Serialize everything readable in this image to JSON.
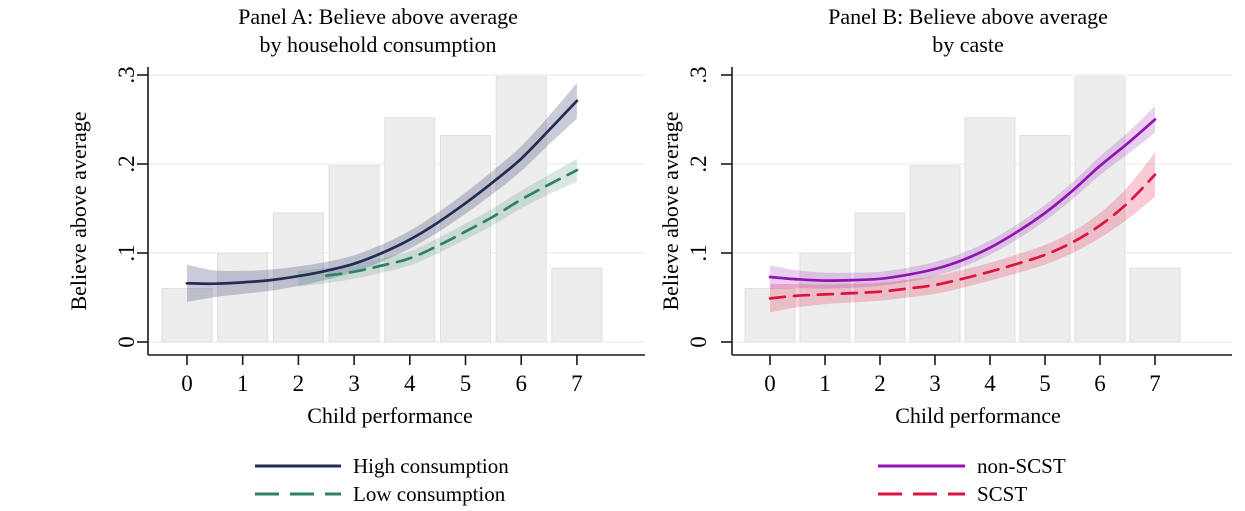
{
  "figure": {
    "background": "#ffffff",
    "text_color": "#000000",
    "grid_color": "#e9eff4",
    "bar_fill": "#ededed",
    "bar_stroke": "#dfdfdf",
    "axis_color": "#1a1a1a"
  },
  "chart_data": [
    {
      "panel": "A",
      "type": "line",
      "title_line1": "Panel A: Believe above average",
      "title_line2": "by household consumption",
      "ylabel": "Believe above average",
      "xlabel": "Child performance",
      "grid": true,
      "legend_position": "bottom",
      "xticks": {
        "values": [
          0,
          1,
          2,
          3,
          4,
          5,
          6,
          7
        ],
        "labels": [
          "0",
          "1",
          "2",
          "3",
          "4",
          "5",
          "6",
          "7"
        ]
      },
      "yticks": {
        "values": [
          0,
          0.1,
          0.2,
          0.3
        ],
        "labels": [
          "0",
          ".1",
          ".2",
          ".3"
        ]
      },
      "ylim": [
        0,
        0.3
      ],
      "histogram": {
        "categories": [
          0,
          1,
          2,
          3,
          4,
          5,
          6,
          7
        ],
        "values": [
          0.06,
          0.1,
          0.145,
          0.198,
          0.252,
          0.232,
          0.298,
          0.083
        ]
      },
      "series": [
        {
          "name": "High consumption",
          "style": "solid",
          "color": "#222c55",
          "band_color": "rgba(60,70,118,0.28)",
          "x": [
            0,
            0.5,
            1,
            1.5,
            2,
            2.5,
            3,
            3.5,
            4,
            4.5,
            5,
            5.5,
            6,
            6.5,
            7
          ],
          "y": [
            0.066,
            0.0655,
            0.067,
            0.0695,
            0.074,
            0.08,
            0.088,
            0.1,
            0.115,
            0.134,
            0.156,
            0.18,
            0.206,
            0.238,
            0.271
          ],
          "ci": [
            0.021,
            0.015,
            0.013,
            0.012,
            0.011,
            0.01,
            0.0095,
            0.0095,
            0.01,
            0.011,
            0.012,
            0.013,
            0.014,
            0.016,
            0.02
          ]
        },
        {
          "name": "Low consumption",
          "style": "dashed",
          "color": "#2f8068",
          "band_color": "rgba(64,140,116,0.20)",
          "line_start_x": 2.5,
          "x": [
            2.0,
            2.5,
            3,
            3.5,
            4,
            4.5,
            5,
            5.5,
            6,
            6.5,
            7
          ],
          "y": [
            0.071,
            0.0745,
            0.079,
            0.086,
            0.094,
            0.108,
            0.124,
            0.141,
            0.16,
            0.177,
            0.193
          ],
          "ci": [
            0.009,
            0.0085,
            0.008,
            0.008,
            0.008,
            0.0085,
            0.009,
            0.0095,
            0.01,
            0.011,
            0.013
          ]
        }
      ]
    },
    {
      "panel": "B",
      "type": "line",
      "title_line1": "Panel B: Believe above average",
      "title_line2": "by caste",
      "ylabel": "Believe above average",
      "xlabel": "Child performance",
      "grid": true,
      "legend_position": "bottom",
      "xticks": {
        "values": [
          0,
          1,
          2,
          3,
          4,
          5,
          6,
          7
        ],
        "labels": [
          "0",
          "1",
          "2",
          "3",
          "4",
          "5",
          "6",
          "7"
        ]
      },
      "yticks": {
        "values": [
          0,
          0.1,
          0.2,
          0.3
        ],
        "labels": [
          "0",
          ".1",
          ".2",
          ".3"
        ]
      },
      "ylim": [
        0,
        0.3
      ],
      "histogram": {
        "categories": [
          0,
          1,
          2,
          3,
          4,
          5,
          6,
          7
        ],
        "values": [
          0.06,
          0.1,
          0.145,
          0.198,
          0.252,
          0.232,
          0.298,
          0.083
        ]
      },
      "series": [
        {
          "name": "non-SCST",
          "style": "solid",
          "color": "#9213b2",
          "band_color": "rgba(150,20,180,0.20)",
          "x": [
            0,
            0.5,
            1,
            1.5,
            2,
            2.5,
            3,
            3.5,
            4,
            4.5,
            5,
            5.5,
            6,
            6.5,
            7
          ],
          "y": [
            0.073,
            0.0705,
            0.069,
            0.0695,
            0.071,
            0.0755,
            0.082,
            0.092,
            0.106,
            0.124,
            0.145,
            0.17,
            0.198,
            0.223,
            0.25
          ],
          "ci": [
            0.013,
            0.01,
            0.009,
            0.0085,
            0.008,
            0.008,
            0.008,
            0.008,
            0.008,
            0.0085,
            0.009,
            0.0095,
            0.0105,
            0.012,
            0.015
          ]
        },
        {
          "name": "SCST",
          "style": "dashed",
          "color": "#dc1240",
          "band_color": "rgba(222,18,64,0.22)",
          "x": [
            0,
            0.5,
            1,
            1.5,
            2,
            2.5,
            3,
            3.5,
            4,
            4.5,
            5,
            5.5,
            6,
            6.5,
            7
          ],
          "y": [
            0.049,
            0.052,
            0.0535,
            0.055,
            0.0565,
            0.06,
            0.064,
            0.071,
            0.079,
            0.088,
            0.098,
            0.112,
            0.131,
            0.156,
            0.188
          ],
          "ci": [
            0.016,
            0.013,
            0.011,
            0.0105,
            0.01,
            0.01,
            0.01,
            0.01,
            0.01,
            0.0105,
            0.011,
            0.012,
            0.014,
            0.018,
            0.025
          ]
        }
      ]
    }
  ]
}
